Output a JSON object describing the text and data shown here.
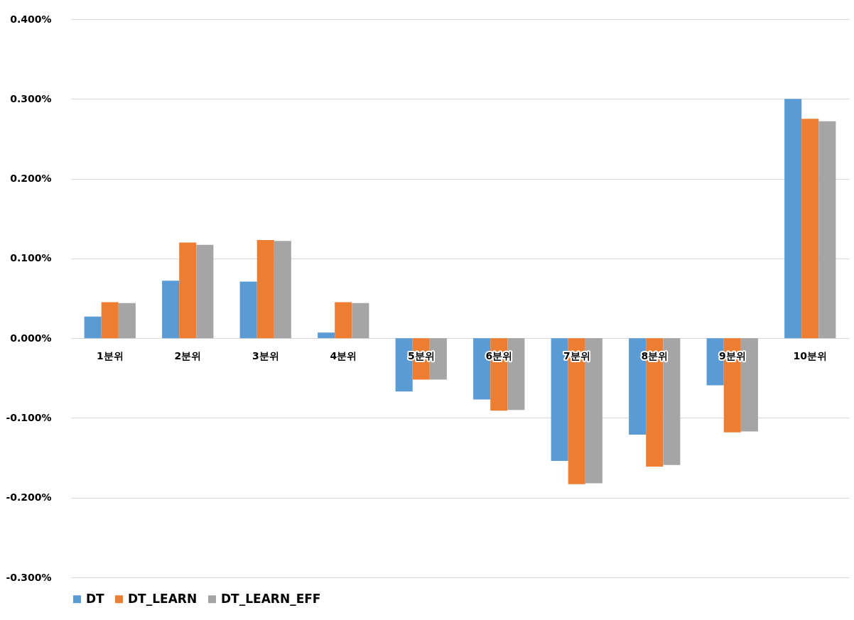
{
  "chart_data": {
    "type": "bar",
    "categories": [
      "1분위",
      "2분위",
      "3분위",
      "4분위",
      "5분위",
      "6분위",
      "7분위",
      "8분위",
      "9분위",
      "10분위"
    ],
    "series": [
      {
        "name": "DT",
        "color": "#5b9bd5",
        "values": [
          0.027,
          0.072,
          0.071,
          0.007,
          -0.067,
          -0.077,
          -0.154,
          -0.121,
          -0.059,
          0.3
        ]
      },
      {
        "name": "DT_LEARN",
        "color": "#ed7d31",
        "values": [
          0.045,
          0.12,
          0.123,
          0.045,
          -0.052,
          -0.091,
          -0.183,
          -0.161,
          -0.118,
          0.275
        ]
      },
      {
        "name": "DT_LEARN_EFF",
        "color": "#a5a5a5",
        "values": [
          0.044,
          0.117,
          0.122,
          0.044,
          -0.052,
          -0.09,
          -0.182,
          -0.159,
          -0.117,
          0.272
        ]
      }
    ],
    "ylim": [
      -0.3,
      0.4
    ],
    "yticks": [
      {
        "value": -0.3,
        "label": "-0.300%"
      },
      {
        "value": -0.2,
        "label": "-0.200%"
      },
      {
        "value": -0.1,
        "label": "-0.100%"
      },
      {
        "value": 0,
        "label": "0.000%"
      },
      {
        "value": 0.1,
        "label": "0.100%"
      },
      {
        "value": 0.2,
        "label": "0.200%"
      },
      {
        "value": 0.3,
        "label": "0.300%"
      },
      {
        "value": 0.4,
        "label": "0.400%"
      }
    ],
    "grid": "y",
    "legend": "bottom"
  }
}
